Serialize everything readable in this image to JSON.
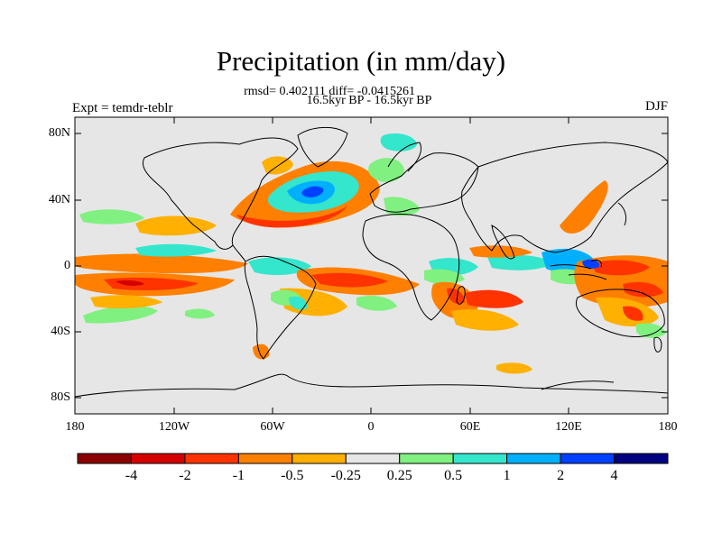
{
  "title": "Precipitation (in mm/day)",
  "stats_line": "rmsd= 0.402111 diff= -0.0415261",
  "period_line": "16.5kyr BP - 16.5kyr BP",
  "experiment_label": "Expt = temdr-teblr",
  "season_label": "DJF",
  "y_axis_labels": [
    "80N",
    "40N",
    "0",
    "40S",
    "80S"
  ],
  "x_axis_labels": [
    "180",
    "120W",
    "60W",
    "0",
    "60E",
    "120E",
    "180"
  ],
  "colorbar": {
    "labels": [
      "-4",
      "-2",
      "-1",
      "-0.5",
      "-0.25",
      "0.25",
      "0.5",
      "1",
      "2",
      "4"
    ],
    "colors": [
      "#8b0000",
      "#d40000",
      "#ff3300",
      "#ff8000",
      "#ffb000",
      "#e6e6e6",
      "#80f080",
      "#33e6cc",
      "#00b0ff",
      "#0040ff",
      "#000080"
    ]
  },
  "map": {
    "background": "#e6e6e6",
    "lon_range": [
      -180,
      180
    ],
    "lat_range": [
      -90,
      90
    ]
  }
}
